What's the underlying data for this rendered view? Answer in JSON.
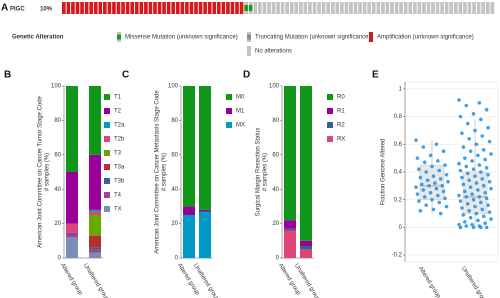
{
  "chart_data": [
    {
      "type": "oncoprint",
      "label": "A",
      "gene": "PIGC",
      "frequency": {
        "value": 10,
        "label": "10%"
      },
      "legend_title": "Genetic Alteration",
      "series": [
        {
          "name": "Missense Mutation (unknown significance)",
          "color": "#1a9e1a",
          "values": [
            2
          ]
        },
        {
          "name": "Truncating Mutation (unknown significance)",
          "color": "#8c8c8c",
          "values": [
            0
          ]
        },
        {
          "name": "Amplification (unknown significance)",
          "color": "#d7191c",
          "values": [
            40
          ]
        },
        {
          "name": "No alterations",
          "color": "#c4c4c4",
          "values": [
            53
          ]
        }
      ]
    },
    {
      "type": "stacked_bar",
      "label": "B",
      "ylabel": [
        "American Joint Committee on Cancer Tumor Stage Code",
        "# samples (%)"
      ],
      "categories": [
        "Altered group",
        "Unaltered group"
      ],
      "ylim": [
        0,
        100
      ],
      "yticks": [
        0,
        20,
        40,
        60,
        80,
        100
      ],
      "series": [
        {
          "name": "T1",
          "color": "#109618",
          "values": [
            50,
            40
          ]
        },
        {
          "name": "T2",
          "color": "#990099",
          "values": [
            30,
            32
          ]
        },
        {
          "name": "T2a",
          "color": "#0099c6",
          "values": [
            0,
            1
          ]
        },
        {
          "name": "T2b",
          "color": "#dd4477",
          "values": [
            5,
            2
          ]
        },
        {
          "name": "T3",
          "color": "#66aa00",
          "values": [
            0,
            12
          ]
        },
        {
          "name": "T3a",
          "color": "#b82e2e",
          "values": [
            0,
            7
          ]
        },
        {
          "name": "T3b",
          "color": "#316395",
          "values": [
            0,
            1
          ]
        },
        {
          "name": "T4",
          "color": "#994499",
          "values": [
            3,
            2
          ]
        },
        {
          "name": "TX",
          "color": "#7a8fb8",
          "values": [
            12,
            3
          ]
        }
      ]
    },
    {
      "type": "stacked_bar",
      "label": "C",
      "ylabel": [
        "American Joint Committee on Cancer Metastasis Stage Code",
        "# samples (%)"
      ],
      "categories": [
        "Altered group",
        "Unaltered group"
      ],
      "ylim": [
        0,
        100
      ],
      "yticks": [
        0,
        20,
        40,
        60,
        80,
        100
      ],
      "series": [
        {
          "name": "M0",
          "color": "#109618",
          "values": [
            70,
            72
          ]
        },
        {
          "name": "M1",
          "color": "#990099",
          "values": [
            5,
            1
          ]
        },
        {
          "name": "MX",
          "color": "#0099c6",
          "values": [
            25,
            27
          ]
        }
      ]
    },
    {
      "type": "stacked_bar",
      "label": "D",
      "ylabel": [
        "Surgical Margin Resection Status",
        "# samples (%)"
      ],
      "categories": [
        "Altered group",
        "Unaltered group"
      ],
      "ylim": [
        0,
        100
      ],
      "yticks": [
        0,
        20,
        40,
        60,
        80,
        100
      ],
      "series": [
        {
          "name": "R0",
          "color": "#109618",
          "values": [
            78,
            90
          ]
        },
        {
          "name": "R1",
          "color": "#990099",
          "values": [
            5,
            3
          ]
        },
        {
          "name": "R2",
          "color": "#316395",
          "values": [
            1,
            2
          ]
        },
        {
          "name": "RX",
          "color": "#dd4477",
          "values": [
            16,
            5
          ]
        }
      ]
    },
    {
      "type": "box",
      "label": "E",
      "ylabel": "Fraction Genome Altered",
      "categories": [
        "Altered group",
        "Unaltered group"
      ],
      "ylim": [
        -0.25,
        1.05
      ],
      "yticks": [
        -0.2,
        0,
        0.2,
        0.4,
        0.6,
        0.8,
        1
      ],
      "grid": true,
      "color": "#1e90e6",
      "boxes": [
        {
          "low": 0.1,
          "q1": 0.2,
          "median": 0.3,
          "q3": 0.45,
          "high": 0.63
        },
        {
          "low": 0,
          "q1": 0.1,
          "median": 0.22,
          "q3": 0.4,
          "high": 0.78
        }
      ],
      "points": [
        [
          0.63,
          0.6,
          0.58,
          0.55,
          0.52,
          0.5,
          0.48,
          0.47,
          0.45,
          0.44,
          0.42,
          0.41,
          0.4,
          0.38,
          0.37,
          0.36,
          0.35,
          0.34,
          0.33,
          0.32,
          0.31,
          0.3,
          0.3,
          0.29,
          0.28,
          0.27,
          0.26,
          0.25,
          0.24,
          0.23,
          0.22,
          0.21,
          0.2,
          0.19,
          0.18,
          0.16,
          0.15,
          0.13,
          0.12,
          0.1
        ],
        [
          0.92,
          0.9,
          0.88,
          0.85,
          0.82,
          0.8,
          0.78,
          0.75,
          0.72,
          0.7,
          0.68,
          0.66,
          0.64,
          0.62,
          0.6,
          0.58,
          0.56,
          0.55,
          0.53,
          0.52,
          0.5,
          0.49,
          0.48,
          0.46,
          0.45,
          0.44,
          0.43,
          0.42,
          0.41,
          0.4,
          0.39,
          0.38,
          0.37,
          0.36,
          0.35,
          0.34,
          0.33,
          0.32,
          0.31,
          0.3,
          0.29,
          0.28,
          0.27,
          0.26,
          0.25,
          0.24,
          0.23,
          0.22,
          0.22,
          0.21,
          0.2,
          0.19,
          0.18,
          0.17,
          0.16,
          0.15,
          0.14,
          0.13,
          0.12,
          0.11,
          0.1,
          0.09,
          0.08,
          0.07,
          0.06,
          0.05,
          0.04,
          0.03,
          0.02,
          0.02,
          0.01,
          0.01,
          0,
          0,
          0,
          0
        ]
      ]
    }
  ]
}
